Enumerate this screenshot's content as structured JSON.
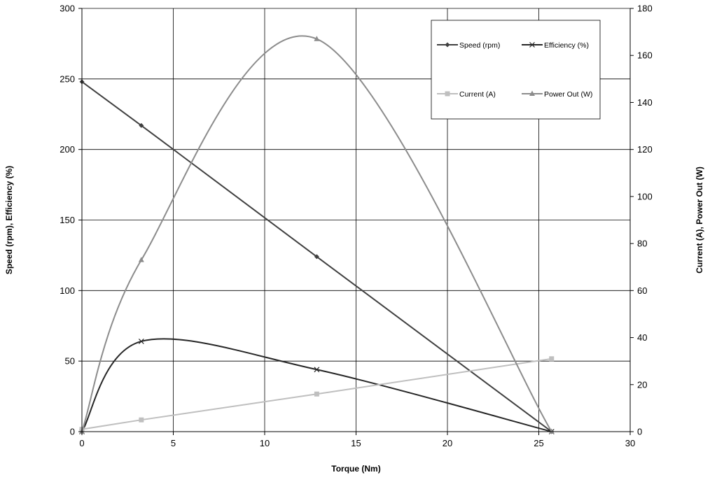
{
  "chart_data": {
    "type": "line",
    "title": "",
    "xlabel": "Torque (Nm)",
    "ylabel_left": "Speed (rpm), Efficiency (%)",
    "ylabel_right": "Current (A), Power Out (W)",
    "xlim": [
      0,
      30
    ],
    "ylim_left": [
      0,
      300
    ],
    "ylim_right": [
      0,
      180
    ],
    "x_ticks": [
      "0",
      "5",
      "10",
      "15",
      "20",
      "25",
      "30"
    ],
    "y_left_ticks": [
      "0",
      "50",
      "100",
      "150",
      "200",
      "250",
      "300"
    ],
    "y_right_ticks": [
      "0",
      "20",
      "40",
      "60",
      "80",
      "100",
      "120",
      "140",
      "160",
      "180"
    ],
    "grid": true,
    "legend_position": "top-right",
    "series": [
      {
        "name": "Speed (rpm)",
        "axis": "left",
        "color": "#404040",
        "marker": "diamond",
        "points": [
          [
            0,
            248
          ],
          [
            3.25,
            217
          ],
          [
            12.85,
            124
          ],
          [
            25.7,
            0
          ]
        ]
      },
      {
        "name": "Efficiency (%)",
        "axis": "left",
        "color": "#262626",
        "marker": "x",
        "points": [
          [
            0,
            0
          ],
          [
            3.25,
            64
          ],
          [
            12.85,
            44
          ],
          [
            25.7,
            0
          ]
        ]
      },
      {
        "name": "Current (A)",
        "axis": "right",
        "color": "#bfbfbf",
        "marker": "square",
        "points": [
          [
            0,
            1
          ],
          [
            3.25,
            5
          ],
          [
            12.85,
            16
          ],
          [
            25.7,
            31
          ]
        ]
      },
      {
        "name": "Power Out (W)",
        "axis": "right",
        "color": "#8c8c8c",
        "marker": "triangle",
        "points": [
          [
            0,
            0
          ],
          [
            3.25,
            73
          ],
          [
            12.85,
            167
          ],
          [
            25.7,
            0
          ]
        ]
      }
    ]
  }
}
